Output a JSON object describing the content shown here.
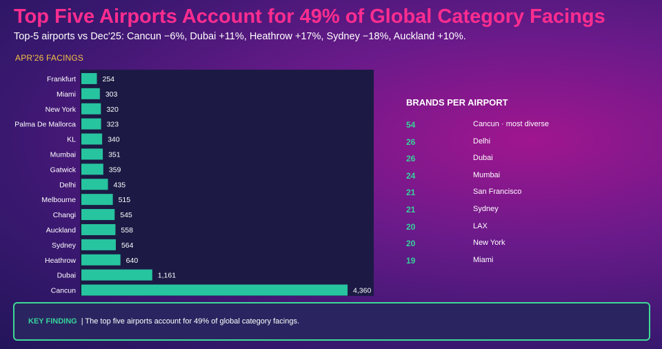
{
  "header": {
    "title": "Top Five Airports Account for 49% of Global Category Facings",
    "subtitle": "Top-5 airports vs Dec'25: Cancun −6%, Dubai +11%, Heathrow +17%, Sydney −18%, Auckland +10%."
  },
  "chart_label": "APR'26 FACINGS",
  "chart_data": {
    "type": "bar",
    "orientation": "horizontal",
    "categories": [
      "Frankfurt",
      "Miami",
      "New York",
      "Palma De Mallorca",
      "KL",
      "Mumbai",
      "Gatwick",
      "Delhi",
      "Melbourne",
      "Changi",
      "Auckland",
      "Sydney",
      "Heathrow",
      "Dubai",
      "Cancun"
    ],
    "values": [
      254,
      303,
      320,
      323,
      340,
      351,
      359,
      435,
      515,
      545,
      558,
      564,
      640,
      1161,
      4360
    ],
    "value_labels": [
      "254",
      "303",
      "320",
      "323",
      "340",
      "351",
      "359",
      "435",
      "515",
      "545",
      "558",
      "564",
      "640",
      "1,161",
      "4,360"
    ],
    "xlim": [
      0,
      4800
    ],
    "bar_color": "#27c4a0",
    "grid": false
  },
  "brands": {
    "title": "BRANDS PER AIRPORT",
    "rows": [
      {
        "count": "54",
        "name": "Cancun  ·  most diverse"
      },
      {
        "count": "26",
        "name": "Delhi"
      },
      {
        "count": "26",
        "name": "Dubai"
      },
      {
        "count": "24",
        "name": "Mumbai"
      },
      {
        "count": "21",
        "name": "San Francisco"
      },
      {
        "count": "21",
        "name": "Sydney"
      },
      {
        "count": "20",
        "name": "LAX"
      },
      {
        "count": "20",
        "name": "New York"
      },
      {
        "count": "19",
        "name": "Miami"
      }
    ]
  },
  "finding": {
    "label": "KEY FINDING",
    "text": "| The top five airports account for 49% of global category facings."
  }
}
